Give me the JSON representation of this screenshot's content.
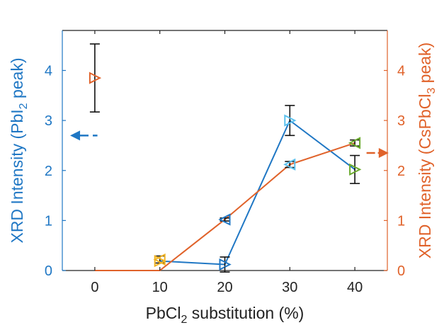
{
  "chart_data": {
    "type": "line",
    "x": [
      0,
      10,
      20,
      30,
      40
    ],
    "xlim": [
      -5,
      45
    ],
    "xticks": [
      "0",
      "10",
      "20",
      "30",
      "40"
    ],
    "xlabel": {
      "pre": "PbCl",
      "sub": "2",
      "post": " substitution (%)"
    },
    "left_axis": {
      "ylim": [
        0,
        4.8
      ],
      "ticks": [
        "0",
        "1",
        "2",
        "3",
        "4"
      ],
      "label": {
        "pre": "XRD Intensity (PbI",
        "sub": "2",
        "post": " peak)"
      },
      "color": "#1f77c4"
    },
    "right_axis": {
      "ylim": [
        0,
        4.8
      ],
      "ticks": [
        "0",
        "1",
        "2",
        "3",
        "4"
      ],
      "label": {
        "pre": "XRD Intensity (CsPbCl",
        "sub": "3",
        "post": " peak)"
      },
      "color": "#e0622a"
    },
    "series": [
      {
        "axis": "left",
        "color": "#1f77c4",
        "x": [
          10,
          20,
          30,
          40
        ],
        "y": [
          0.19,
          0.12,
          3.0,
          2.02
        ],
        "err": [
          null,
          0.15,
          0.3,
          0.28
        ],
        "marker": "triangle-right",
        "marker_colors": [
          "#f0b323",
          "#1f77c4",
          "#5bc1ee",
          "#6aaa2d"
        ]
      },
      {
        "axis": "left",
        "color": "#1f77c4",
        "x": [
          20
        ],
        "y": [
          1.02
        ],
        "err": [
          0.03
        ],
        "marker": "triangle-left",
        "marker_colors": [
          "#1f77c4"
        ]
      },
      {
        "axis": "right",
        "color": "#e0622a",
        "x": [
          0,
          10,
          20,
          30,
          40
        ],
        "y": [
          0.0,
          0.0,
          1.02,
          2.12,
          2.55
        ],
        "err": [
          null,
          null,
          null,
          0.06,
          0.06
        ],
        "marker": "triangle-left",
        "marker_colors": [
          null,
          null,
          null,
          "#5bc1ee",
          "#6aaa2d"
        ]
      },
      {
        "axis": "right",
        "color": "#e0622a",
        "x": [
          0
        ],
        "y": [
          3.85
        ],
        "err": [
          0.68
        ],
        "marker": "triangle-right",
        "marker_colors": [
          "#e0622a"
        ]
      },
      {
        "axis": "right",
        "color": "#e0622a",
        "x": [
          10
        ],
        "y": [
          0.22
        ],
        "err": [
          0.07
        ],
        "marker": "triangle-left",
        "marker_colors": [
          "#f0b323"
        ]
      }
    ],
    "annotations": [
      {
        "type": "arrow-left",
        "color": "#1f77c4",
        "x": [
          -3.8,
          0.4
        ],
        "y": 2.7
      },
      {
        "type": "arrow-right",
        "color": "#e0622a",
        "x": [
          41.8,
          45.2
        ],
        "y": 2.35
      }
    ],
    "errorbar_color": "#111111",
    "grid": false,
    "legend": "none"
  }
}
